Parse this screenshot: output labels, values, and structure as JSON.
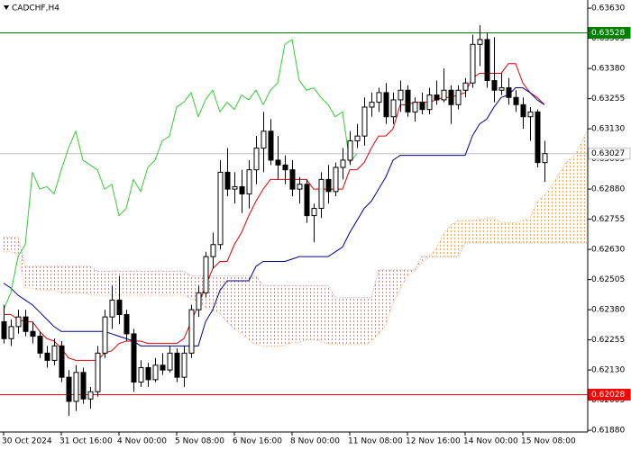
{
  "chart_data": {
    "type": "candlestick",
    "title": "CADCHF,H4",
    "categories": [
      "30 Oct 2024",
      null,
      null,
      null,
      null,
      null,
      null,
      null,
      "31 Oct 16:00",
      null,
      null,
      null,
      null,
      null,
      null,
      null,
      "4 Nov 00:00",
      null,
      null,
      null,
      null,
      null,
      null,
      null,
      "5 Nov 08:00",
      null,
      null,
      null,
      null,
      null,
      null,
      null,
      "6 Nov 16:00",
      null,
      null,
      null,
      null,
      null,
      null,
      null,
      "8 Nov 00:00",
      null,
      null,
      null,
      null,
      null,
      null,
      null,
      "11 Nov 08:00",
      null,
      null,
      null,
      null,
      null,
      null,
      null,
      "12 Nov 16:00",
      null,
      null,
      null,
      null,
      null,
      null,
      null,
      "14 Nov 00:00",
      null,
      null,
      null,
      null,
      null,
      null,
      null,
      "15 Nov 08:00",
      null,
      null,
      null,
      null,
      null,
      null,
      null,
      null,
      null
    ],
    "open": [
      0.6233,
      0.6226,
      0.6231,
      0.6235,
      0.6229,
      0.6227,
      0.622,
      0.6217,
      0.6223,
      0.621,
      0.62,
      0.6212,
      0.6201,
      0.6204,
      0.622,
      0.6235,
      0.6242,
      0.6236,
      0.6228,
      0.6208,
      0.6214,
      0.6209,
      0.6215,
      0.6213,
      0.622,
      0.621,
      0.622,
      0.6238,
      0.6245,
      0.626,
      0.6265,
      0.6295,
      0.6288,
      0.6289,
      0.6286,
      0.6296,
      0.6305,
      0.6312,
      0.63,
      0.6298,
      0.6296,
      0.6288,
      0.629,
      0.6277,
      0.628,
      0.6292,
      0.6287,
      0.6297,
      0.63,
      0.6308,
      0.631,
      0.6322,
      0.6324,
      0.6328,
      0.6318,
      0.6325,
      0.6329,
      0.632,
      0.6324,
      0.6321,
      0.6327,
      0.6325,
      0.6329,
      0.6323,
      0.6329,
      0.6332,
      0.6348,
      0.635,
      0.6333,
      0.6329,
      0.633,
      0.6326,
      0.6323,
      0.6318,
      0.632,
      0.6299,
      null,
      null,
      null,
      null,
      null,
      null
    ],
    "high": [
      0.624,
      0.6234,
      0.6238,
      0.6238,
      0.6233,
      0.6229,
      0.6223,
      0.6226,
      0.6225,
      0.6213,
      0.6215,
      0.6214,
      0.6206,
      0.6223,
      0.6238,
      0.6248,
      0.6252,
      0.6238,
      0.623,
      0.6217,
      0.6216,
      0.6218,
      0.622,
      0.6223,
      0.6222,
      0.6223,
      0.624,
      0.6248,
      0.6262,
      0.627,
      0.63,
      0.6305,
      0.6295,
      0.6296,
      0.63,
      0.631,
      0.632,
      0.6317,
      0.631,
      0.6302,
      0.63,
      0.6293,
      0.6292,
      0.6282,
      0.6295,
      0.6298,
      0.6299,
      0.6305,
      0.6312,
      0.6315,
      0.6326,
      0.6328,
      0.633,
      0.6332,
      0.6328,
      0.6333,
      0.6331,
      0.6326,
      0.6328,
      0.633,
      0.6333,
      0.6338,
      0.6331,
      0.6331,
      0.6334,
      0.6352,
      0.6356,
      0.6353,
      0.6351,
      0.6336,
      0.6334,
      0.6329,
      0.6326,
      0.6322,
      0.6321,
      0.6308,
      null,
      null,
      null,
      null,
      null,
      null
    ],
    "low": [
      0.6224,
      0.6223,
      0.6228,
      0.6227,
      0.6224,
      0.6218,
      0.6214,
      0.6215,
      0.6208,
      0.6194,
      0.6196,
      0.6199,
      0.6197,
      0.6202,
      0.6218,
      0.623,
      0.6232,
      0.6225,
      0.6204,
      0.6206,
      0.6206,
      0.6208,
      0.6211,
      0.6212,
      0.6208,
      0.6206,
      0.6218,
      0.6235,
      0.6243,
      0.6255,
      0.6263,
      0.6285,
      0.6282,
      0.6278,
      0.628,
      0.629,
      0.6295,
      0.6298,
      0.6292,
      0.629,
      0.6285,
      0.6282,
      0.6274,
      0.6266,
      0.6276,
      0.6282,
      0.6285,
      0.6292,
      0.6298,
      0.6305,
      0.6306,
      0.6318,
      0.632,
      0.6315,
      0.6315,
      0.632,
      0.6318,
      0.6316,
      0.6319,
      0.6319,
      0.6323,
      0.6324,
      0.6315,
      0.6321,
      0.6326,
      0.633,
      0.6339,
      0.633,
      0.6324,
      0.6327,
      0.6323,
      0.632,
      0.6313,
      0.6308,
      0.6297,
      0.6291,
      null,
      null,
      null,
      null,
      null,
      null
    ],
    "close": [
      0.6226,
      0.6231,
      0.6235,
      0.6229,
      0.6227,
      0.622,
      0.6217,
      0.6223,
      0.621,
      0.62,
      0.6212,
      0.6201,
      0.6204,
      0.622,
      0.6235,
      0.6242,
      0.6236,
      0.6228,
      0.6208,
      0.6214,
      0.6209,
      0.6215,
      0.6213,
      0.622,
      0.621,
      0.622,
      0.6238,
      0.6245,
      0.626,
      0.6265,
      0.6295,
      0.6288,
      0.6289,
      0.6286,
      0.6296,
      0.6305,
      0.6312,
      0.63,
      0.6298,
      0.6296,
      0.6288,
      0.629,
      0.6277,
      0.628,
      0.6292,
      0.6287,
      0.6297,
      0.63,
      0.6308,
      0.631,
      0.6322,
      0.6324,
      0.6328,
      0.6318,
      0.6325,
      0.6329,
      0.632,
      0.6324,
      0.6321,
      0.6327,
      0.6325,
      0.6329,
      0.6323,
      0.6329,
      0.6332,
      0.6348,
      0.635,
      0.6333,
      0.6329,
      0.633,
      0.6326,
      0.6323,
      0.6318,
      0.632,
      0.6299,
      0.63027,
      null,
      null,
      null,
      null,
      null,
      null
    ],
    "bull_color": "#ffffff",
    "bear_color": "#000000",
    "lines": [
      {
        "color": "#e00000",
        "values": [
          0.6236,
          0.6236,
          0.6234,
          0.6233,
          0.6233,
          0.6229,
          0.6226,
          0.6225,
          0.6222,
          0.6218,
          0.6217,
          0.6217,
          0.6217,
          0.6217,
          0.622,
          0.6221,
          0.6224,
          0.6225,
          0.6225,
          0.6225,
          0.6224,
          0.6224,
          0.6224,
          0.6224,
          0.6224,
          0.6226,
          0.6233,
          0.624,
          0.6248,
          0.6255,
          0.6258,
          0.6258,
          0.6265,
          0.627,
          0.6277,
          0.6283,
          0.6288,
          0.6292,
          0.6292,
          0.6292,
          0.6292,
          0.6292,
          0.6292,
          0.6288,
          0.6288,
          0.6288,
          0.6288,
          0.6288,
          0.6296,
          0.6296,
          0.6299,
          0.6305,
          0.631,
          0.631,
          0.6313,
          0.6323,
          0.6323,
          0.6324,
          0.6324,
          0.6324,
          0.6325,
          0.6326,
          0.6326,
          0.6327,
          0.6328,
          0.6334,
          0.6336,
          0.6336,
          0.6336,
          0.6336,
          0.634,
          0.634,
          0.6332,
          0.6328,
          0.6326,
          0.6323,
          null,
          null,
          null,
          null,
          null,
          null
        ]
      },
      {
        "color": "#00008b",
        "values": [
          0.6249,
          0.6247,
          0.6244,
          0.6242,
          0.624,
          0.6237,
          0.6234,
          0.6231,
          0.6229,
          0.6229,
          0.6229,
          0.6229,
          0.6229,
          0.6229,
          0.6229,
          0.6228,
          0.6227,
          0.6226,
          0.6225,
          0.6223,
          0.6223,
          0.6223,
          0.6223,
          0.6223,
          0.6223,
          0.6223,
          0.6223,
          0.6223,
          0.6233,
          0.6238,
          0.6246,
          0.625,
          0.625,
          0.625,
          0.625,
          0.6256,
          0.6258,
          0.6258,
          0.6258,
          0.6258,
          0.6259,
          0.626,
          0.626,
          0.626,
          0.626,
          0.626,
          0.6262,
          0.6264,
          0.627,
          0.6275,
          0.628,
          0.6283,
          0.6288,
          0.6293,
          0.63,
          0.6302,
          0.6302,
          0.6302,
          0.6302,
          0.6302,
          0.6302,
          0.6302,
          0.6302,
          0.6302,
          0.6302,
          0.631,
          0.6315,
          0.6317,
          0.6322,
          0.6326,
          0.6327,
          0.633,
          0.633,
          0.6328,
          0.6325,
          0.6323,
          null,
          null,
          null,
          null,
          null,
          null
        ]
      },
      {
        "color": "#32cd32",
        "values": [
          0.6238,
          0.6245,
          0.626,
          0.6265,
          0.6295,
          0.6288,
          0.6289,
          0.6286,
          0.6296,
          0.6305,
          0.6312,
          0.63,
          0.6298,
          0.6296,
          0.6288,
          0.629,
          0.6277,
          0.628,
          0.6292,
          0.6287,
          0.6297,
          0.63,
          0.6308,
          0.631,
          0.6322,
          0.6324,
          0.6328,
          0.6318,
          0.6325,
          0.6329,
          0.632,
          0.6324,
          0.6321,
          0.6327,
          0.6325,
          0.6329,
          0.6323,
          0.6329,
          0.6332,
          0.6348,
          0.635,
          0.6333,
          0.6329,
          0.633,
          0.6326,
          0.6323,
          0.6318,
          0.632,
          0.6299,
          0.63027,
          null,
          null,
          null,
          null,
          null,
          null,
          null,
          null,
          null,
          null,
          null,
          null,
          null,
          null,
          null,
          null,
          null,
          null,
          null,
          null,
          null,
          null,
          null,
          null,
          null,
          null,
          null,
          null,
          null,
          null,
          null,
          null
        ]
      }
    ],
    "cloud": {
      "bull_color": "#f4a460",
      "bear_color": "#bc8f8f",
      "span_a": [
        0.6262,
        0.6262,
        0.6261,
        0.6247,
        0.6247,
        0.6246,
        0.6246,
        0.6246,
        0.6245,
        0.6245,
        0.6245,
        0.6245,
        0.6244,
        0.6244,
        0.6244,
        0.6244,
        0.6244,
        0.6244,
        0.6244,
        0.6244,
        0.6244,
        0.6244,
        0.6244,
        0.6244,
        0.6244,
        0.6244,
        0.62425,
        0.62415,
        0.6239,
        0.62375,
        0.62365,
        0.6233,
        0.623,
        0.6228,
        0.62255,
        0.62235,
        0.6223,
        0.6223,
        0.6223,
        0.6223,
        0.62245,
        0.62245,
        0.62255,
        0.62255,
        0.6225,
        0.6224,
        0.62235,
        0.62235,
        0.62235,
        0.62235,
        0.62235,
        0.62245,
        0.6228,
        0.62315,
        0.62405,
        0.62465,
        0.6252,
        0.6254,
        0.62575,
        0.626,
        0.62635,
        0.62695,
        0.6273,
        0.6275,
        0.6275,
        0.6275,
        0.62755,
        0.6276,
        0.6276,
        0.6274,
        0.6274,
        0.6274,
        0.6275,
        0.6276,
        0.6283,
        0.62855,
        0.62895,
        0.6294,
        0.6299,
        0.63015,
        0.63065,
        0.63125
      ],
      "span_b": [
        0.6268,
        0.6268,
        0.6268,
        0.6256,
        0.6256,
        0.6256,
        0.6256,
        0.6256,
        0.6256,
        0.6256,
        0.6256,
        0.6256,
        0.6256,
        0.6254,
        0.6254,
        0.6254,
        0.6254,
        0.6254,
        0.6254,
        0.6254,
        0.6254,
        0.6254,
        0.6254,
        0.6254,
        0.6254,
        0.6254,
        0.6252,
        0.6252,
        0.6252,
        0.6252,
        0.6252,
        0.6252,
        0.6252,
        0.6252,
        0.6252,
        0.6252,
        0.6248,
        0.6248,
        0.6248,
        0.6248,
        0.6248,
        0.6248,
        0.6248,
        0.6248,
        0.6248,
        0.6248,
        0.6243,
        0.6243,
        0.6243,
        0.6243,
        0.6243,
        0.6243,
        0.62545,
        0.62545,
        0.62545,
        0.62545,
        0.62545,
        0.62545,
        0.626,
        0.626,
        0.626,
        0.626,
        0.626,
        0.626,
        0.62657,
        0.62657,
        0.62657,
        0.62657,
        0.62657,
        0.62657,
        0.62657,
        0.62657,
        0.62657,
        0.62657,
        0.62657,
        0.62657,
        0.62657,
        0.62657,
        0.62657,
        0.62657,
        0.62657,
        0.62657
      ]
    },
    "levels": [
      {
        "value": 0.63528,
        "color": "#008000",
        "box": "#008000",
        "text": "#ffffff"
      },
      {
        "value": 0.63027,
        "color": "#c0c0c0",
        "box": "#ffffff",
        "text": "#000000"
      },
      {
        "value": 0.62028,
        "color": "#ff0000",
        "box": "#ff0000",
        "text": "#ffffff"
      }
    ],
    "ylim": [
      0.61873,
      0.63664
    ],
    "yticks": [
      {
        "value": 0.6363,
        "label": "0.63630"
      },
      0.63505,
      {
        "value": 0.6338,
        "label": "0.63380"
      },
      0.63255,
      {
        "value": 0.6313,
        "label": "0.63130"
      },
      0.63005,
      {
        "value": 0.6288,
        "label": "0.62880"
      },
      0.62755,
      {
        "value": 0.6263,
        "label": "0.62630"
      },
      0.62505,
      {
        "value": 0.6238,
        "label": "0.62380"
      },
      0.62255,
      {
        "value": 0.6213,
        "label": "0.62130"
      },
      0.62005,
      {
        "value": 0.6188,
        "label": "0.61880"
      }
    ]
  }
}
